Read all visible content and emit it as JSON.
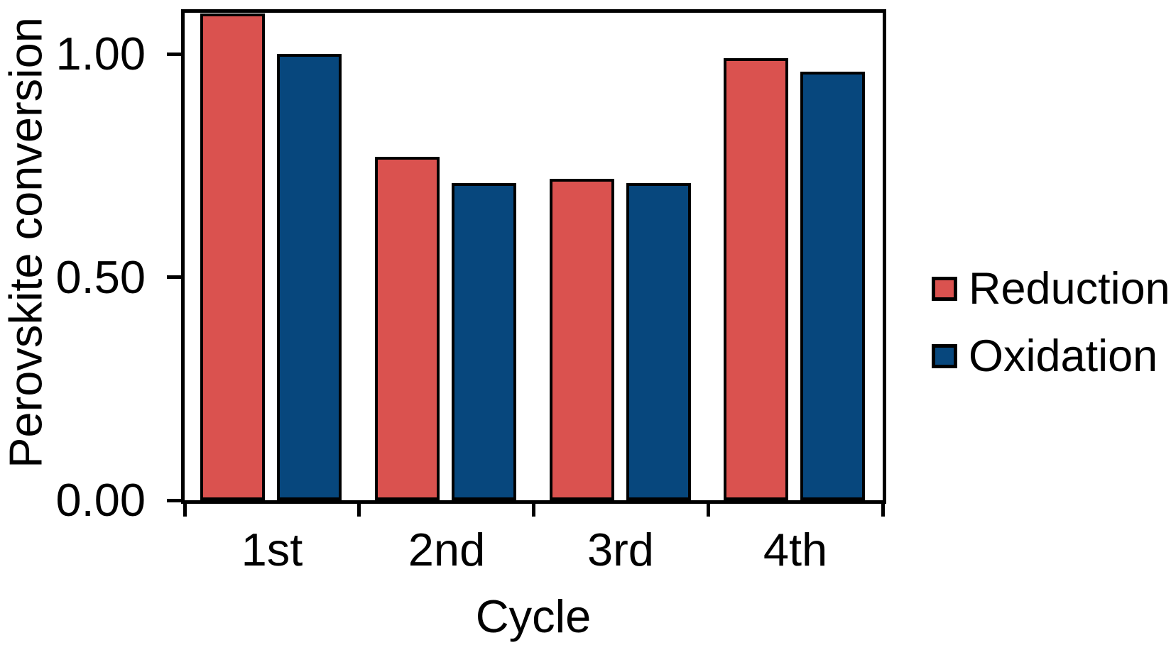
{
  "chart_data": {
    "type": "bar",
    "title": "",
    "xlabel": "Cycle",
    "ylabel": "Perovskite conversion",
    "categories": [
      "1st",
      "2nd",
      "3rd",
      "4th"
    ],
    "series": [
      {
        "name": "Reduction",
        "color": "#DA524F",
        "values": [
          1.09,
          0.77,
          0.72,
          0.99
        ]
      },
      {
        "name": "Oxidation",
        "color": "#07477D",
        "values": [
          1.0,
          0.71,
          0.71,
          0.96
        ]
      }
    ],
    "ylim": [
      0.0,
      1.1
    ],
    "yticks": [
      {
        "value": 0.0,
        "label": "0.00"
      },
      {
        "value": 0.5,
        "label": "0.50"
      },
      {
        "value": 1.0,
        "label": "1.00"
      }
    ],
    "grid": false,
    "legend_position": "right",
    "notes": "First-cycle Reduction bar is clipped at the top edge of the plot area; axis and bar outlines are black, background white."
  }
}
